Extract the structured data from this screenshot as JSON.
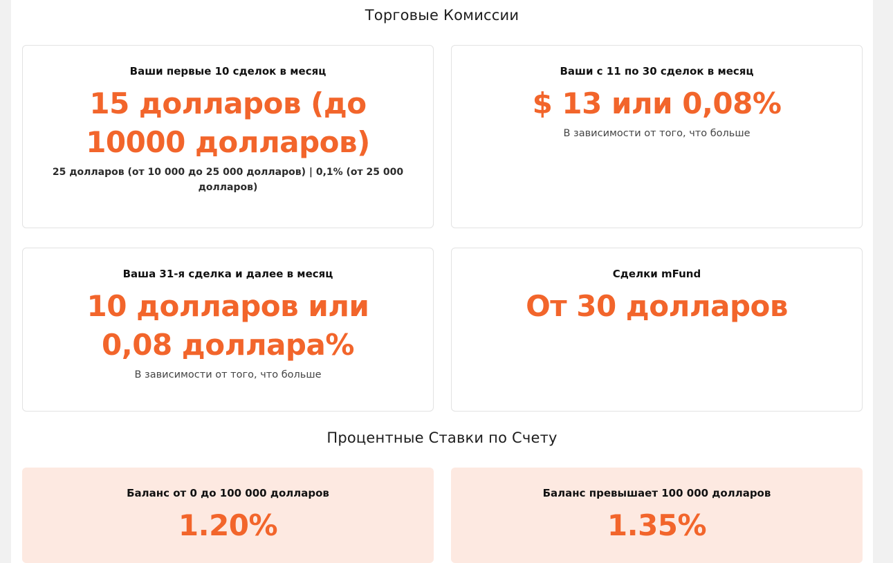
{
  "trading": {
    "title": "Торговые Комиссии",
    "cards": [
      {
        "title": "Ваши первые 10 сделок в месяц",
        "value": "15 долларов (до 10000 долларов)",
        "note": "25 долларов (от 10 000 до 25 000 долларов) | 0,1% (от 25 000 долларов)"
      },
      {
        "title": "Ваши с 11 по 30 сделок в месяц",
        "value": "$ 13 или 0,08%",
        "note": "В зависимости от того, что больше"
      },
      {
        "title": "Ваша 31-я сделка и далее в месяц",
        "value": "10 долларов или 0,08 доллара%",
        "note": "В зависимости от того, что больше"
      },
      {
        "title": "Сделки mFund",
        "value": "От 30 долларов",
        "note": ""
      }
    ]
  },
  "interest": {
    "title": "Процентные Ставки по Счету",
    "cards": [
      {
        "title": "Баланс от 0 до 100 000 долларов",
        "value": "1.20%"
      },
      {
        "title": "Баланс превышает 100 000 долларов",
        "value": "1.35%"
      }
    ]
  },
  "colors": {
    "accent": "#f2652b",
    "rate_card_bg": "#fde9e1",
    "card_border": "#e2e2e2"
  }
}
